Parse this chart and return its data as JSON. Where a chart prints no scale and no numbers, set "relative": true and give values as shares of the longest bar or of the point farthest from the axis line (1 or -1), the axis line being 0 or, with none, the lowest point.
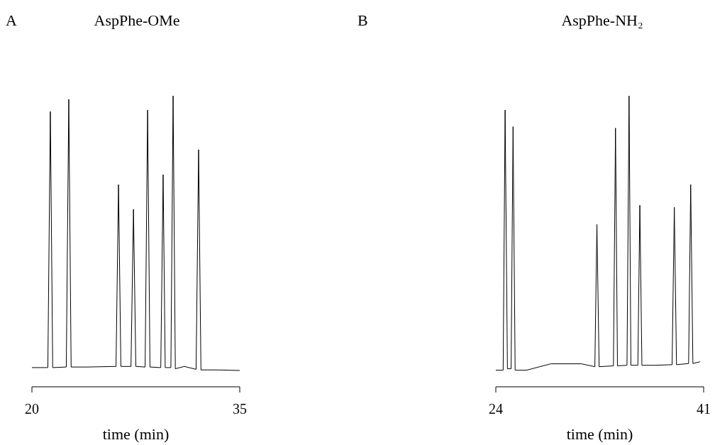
{
  "chart_data": [
    {
      "type": "line",
      "title": "AspPhe-OMe",
      "annotations": [
        "A"
      ],
      "xlabel": "time (min)",
      "relative": true,
      "xlim": [
        20,
        35
      ],
      "xticks": [
        20,
        35
      ],
      "tick_labels": "x",
      "grid": false,
      "legend": false,
      "marker": "none",
      "line_style": "solid",
      "series": [
        {
          "color": "#000000",
          "x": [
            20,
            21.15,
            21.33,
            21.5,
            22.48,
            22.66,
            22.83,
            24,
            26.07,
            26.25,
            26.42,
            27.15,
            27.33,
            27.5,
            28.17,
            28.35,
            28.52,
            29.3,
            29.47,
            29.62,
            30.03,
            30.19,
            30.35,
            31.0,
            31.85,
            32.03,
            32.2,
            33.5,
            35
          ],
          "values": [
            0.066,
            0.066,
            0.946,
            0.066,
            0.068,
            0.988,
            0.068,
            0.068,
            0.07,
            0.695,
            0.07,
            0.07,
            0.61,
            0.07,
            0.068,
            0.951,
            0.068,
            0.066,
            0.729,
            0.066,
            0.066,
            1,
            0.062,
            0.07,
            0.06,
            0.815,
            0.058,
            0.058,
            0.056
          ]
        }
      ]
    },
    {
      "type": "line",
      "title": "AspPhe-NH₂",
      "annotations": [
        "B"
      ],
      "xlabel": "time (min)",
      "relative": true,
      "xlim": [
        24,
        41
      ],
      "xticks": [
        24,
        41
      ],
      "tick_labels": "x",
      "grid": false,
      "legend": false,
      "marker": "none",
      "line_style": "solid",
      "series": [
        {
          "color": "#000000",
          "x": [
            24,
            24.6,
            24.76,
            24.95,
            25.25,
            25.41,
            25.58,
            26.5,
            28.5,
            31,
            32.1,
            32.27,
            32.45,
            33.62,
            33.79,
            33.95,
            34.73,
            34.9,
            35.05,
            35.62,
            35.78,
            35.95,
            37,
            38.42,
            38.6,
            38.78,
            39.77,
            39.94,
            40.12,
            40.7
          ],
          "values": [
            0.057,
            0.057,
            0.951,
            0.062,
            0.062,
            0.894,
            0.057,
            0.057,
            0.079,
            0.079,
            0.069,
            0.558,
            0.069,
            0.072,
            0.889,
            0.072,
            0.074,
            1,
            0.074,
            0.074,
            0.624,
            0.074,
            0.074,
            0.076,
            0.617,
            0.076,
            0.08,
            0.695,
            0.08,
            0.086
          ]
        }
      ]
    }
  ]
}
